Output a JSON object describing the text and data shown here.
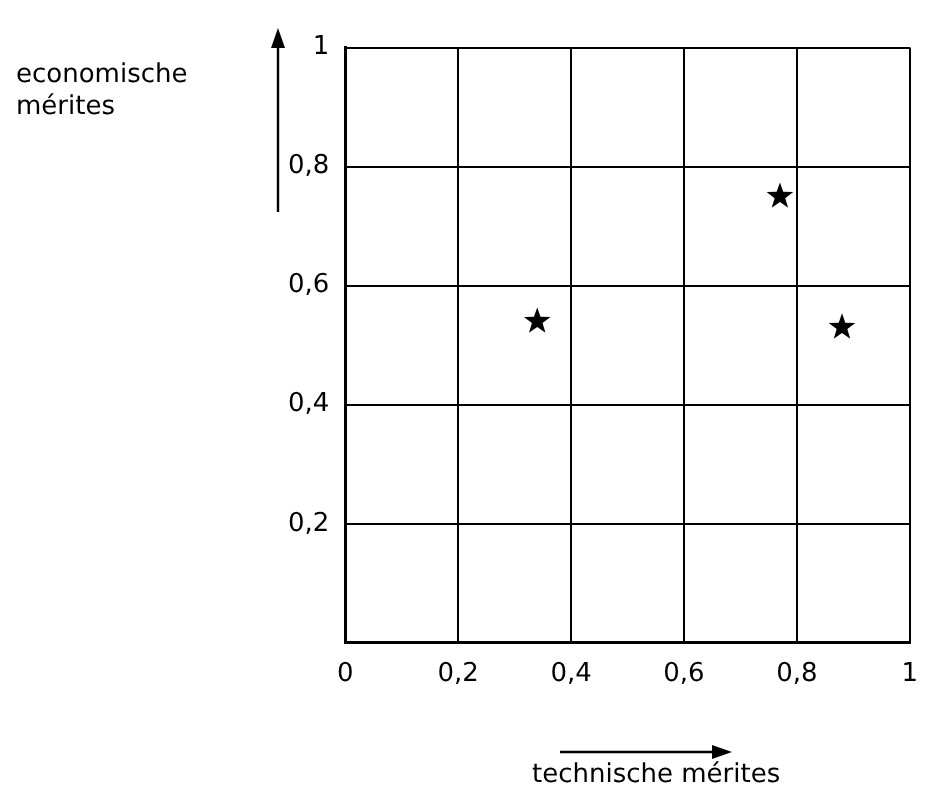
{
  "chart_data": {
    "type": "scatter",
    "xlabel": "technische mérites",
    "ylabel": "economische mérites",
    "x": [
      0.34,
      0.77,
      0.88
    ],
    "values": [
      0.54,
      0.75,
      0.53
    ],
    "color": "#000000",
    "marker": "star",
    "xlim": [
      0,
      1
    ],
    "ylim": [
      0,
      1
    ],
    "xticks": [
      0,
      {
        "value": 0.2,
        "label": "0,2"
      },
      {
        "value": 0.4,
        "label": "0,4"
      },
      {
        "value": 0.6,
        "label": "0,6"
      },
      {
        "value": 0.8,
        "label": "0,8"
      },
      1
    ],
    "yticks": [
      {
        "value": 0,
        "label": null
      },
      {
        "value": 0.2,
        "label": "0,2"
      },
      {
        "value": 0.4,
        "label": "0,4"
      },
      {
        "value": 0.6,
        "label": "0,6"
      },
      {
        "value": 0.8,
        "label": "0,8"
      },
      1
    ],
    "grid": true,
    "legend": false
  }
}
